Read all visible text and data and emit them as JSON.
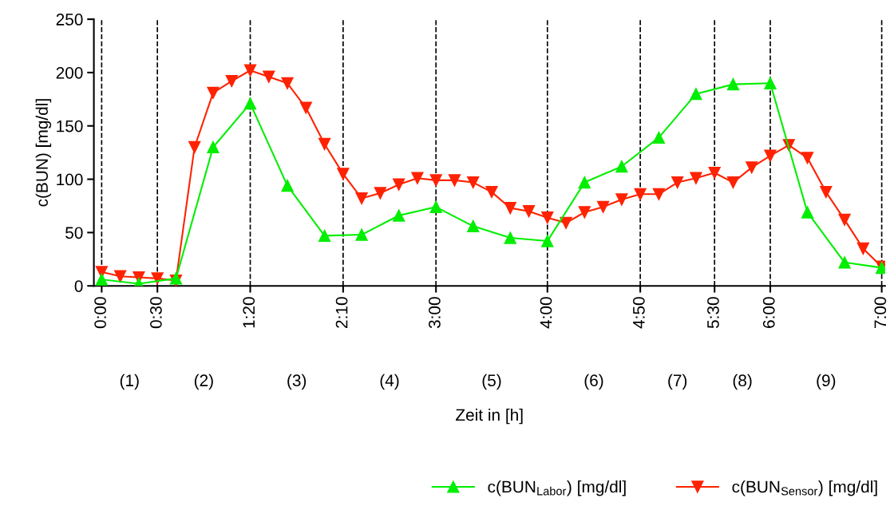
{
  "chart_data": {
    "type": "line",
    "xlabel": "Zeit in [h]",
    "ylabel": "c(BUN) [mg/dl]",
    "xlim": [
      -0.07,
      7.03
    ],
    "ylim": [
      0,
      250
    ],
    "xticks": [
      {
        "value": 0,
        "label": "0:00"
      },
      {
        "value": 0.5,
        "label": "0:30"
      },
      {
        "value": 1.3333,
        "label": "1:20"
      },
      {
        "value": 2.1667,
        "label": "2:10"
      },
      {
        "value": 3,
        "label": "3:00"
      },
      {
        "value": 4,
        "label": "4:00"
      },
      {
        "value": 4.8333,
        "label": "4:50"
      },
      {
        "value": 5.5,
        "label": "5:30"
      },
      {
        "value": 6,
        "label": "6:00"
      },
      {
        "value": 7,
        "label": "7:00"
      }
    ],
    "yticks": [
      0,
      50,
      100,
      150,
      200,
      250
    ],
    "grid": false,
    "legend": "bottom right",
    "line_style": "solid",
    "series": [
      {
        "name": "c(BUN$_{Labor}$) [mg/dl]",
        "color": "#00ee00",
        "marker": "triangle",
        "x": [
          0,
          0.3333,
          0.6667,
          1,
          1.3333,
          1.6667,
          2,
          2.3333,
          2.6667,
          3,
          3.3333,
          3.6667,
          4,
          4.3333,
          4.6667,
          5,
          5.3333,
          5.6667,
          6,
          6.3333,
          6.6667,
          7
        ],
        "values": [
          6,
          2,
          7,
          130,
          171,
          94,
          47,
          48,
          66,
          74,
          56,
          45,
          42,
          97,
          112,
          139,
          180,
          189,
          190,
          69,
          22,
          17
        ]
      },
      {
        "name": "c(BUN$_{Sensor}$) [mg/dl]",
        "color": "#ff2200",
        "marker": "triangle_down",
        "x": [
          0,
          0.1667,
          0.3333,
          0.5,
          0.6667,
          0.8333,
          1,
          1.1667,
          1.3333,
          1.5,
          1.6667,
          1.8333,
          2,
          2.1667,
          2.3333,
          2.5,
          2.6667,
          2.8333,
          3,
          3.1667,
          3.3333,
          3.5,
          3.6667,
          3.8333,
          4,
          4.1667,
          4.3333,
          4.5,
          4.6667,
          4.8333,
          5,
          5.1667,
          5.3333,
          5.5,
          5.6667,
          5.8333,
          6,
          6.1667,
          6.3333,
          6.5,
          6.6667,
          6.8333,
          7
        ],
        "values": [
          13,
          9,
          8,
          7,
          5,
          130,
          181,
          192,
          202,
          196,
          190,
          167,
          133,
          105,
          82,
          87,
          95,
          101,
          99,
          99,
          97,
          88,
          73,
          70,
          64,
          59,
          69,
          74,
          81,
          86,
          86,
          97,
          101,
          106,
          97,
          111,
          122,
          132,
          120,
          88,
          62,
          35,
          18
        ]
      }
    ],
    "ref_lines": [
      {
        "axis": "x",
        "value": 0,
        "color": "#000000",
        "line_style": "dashed"
      },
      {
        "axis": "x",
        "value": 0.5,
        "color": "#000000",
        "line_style": "dashed"
      },
      {
        "axis": "x",
        "value": 1.3333,
        "color": "#000000",
        "line_style": "dashed"
      },
      {
        "axis": "x",
        "value": 2.1667,
        "color": "#000000",
        "line_style": "dashed"
      },
      {
        "axis": "x",
        "value": 3,
        "color": "#000000",
        "line_style": "dashed"
      },
      {
        "axis": "x",
        "value": 4,
        "color": "#000000",
        "line_style": "dashed"
      },
      {
        "axis": "x",
        "value": 4.8333,
        "color": "#000000",
        "line_style": "dashed"
      },
      {
        "axis": "x",
        "value": 5.5,
        "color": "#000000",
        "line_style": "dashed"
      },
      {
        "axis": "x",
        "value": 6,
        "color": "#000000",
        "line_style": "dashed"
      },
      {
        "axis": "x",
        "value": 7,
        "color": "#000000",
        "line_style": "dashed"
      }
    ],
    "annotations": [
      "(1)",
      "(2)",
      "(3)",
      "(4)",
      "(5)",
      "(6)",
      "(7)",
      "(8)",
      "(9)"
    ]
  }
}
